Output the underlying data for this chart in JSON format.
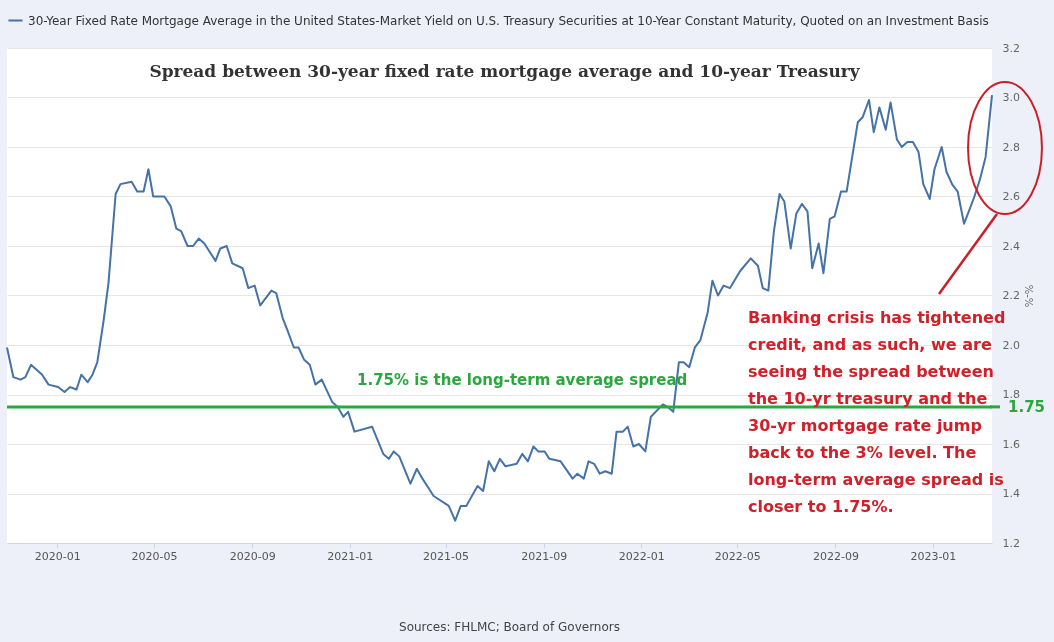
{
  "chart_data": {
    "type": "line",
    "title": "Spread between 30-year fixed rate mortgage average and 10-year Treasury",
    "ylabel": "%-%",
    "x": [
      "2019-10-30",
      "2019-11-07",
      "2019-11-16",
      "2019-11-22",
      "2019-11-29",
      "2019-12-13",
      "2019-12-21",
      "2020-01-02",
      "2020-01-10",
      "2020-01-17",
      "2020-01-25",
      "2020-01-31",
      "2020-02-08",
      "2020-02-14",
      "2020-02-20",
      "2020-02-28",
      "2020-03-05",
      "2020-03-14",
      "2020-03-20",
      "2020-04-03",
      "2020-04-10",
      "2020-04-18",
      "2020-04-24",
      "2020-04-30",
      "2020-05-14",
      "2020-05-22",
      "2020-05-29",
      "2020-06-04",
      "2020-06-12",
      "2020-06-19",
      "2020-06-26",
      "2020-07-03",
      "2020-07-17",
      "2020-07-23",
      "2020-07-31",
      "2020-08-07",
      "2020-08-20",
      "2020-08-27",
      "2020-09-04",
      "2020-09-11",
      "2020-09-25",
      "2020-10-01",
      "2020-10-09",
      "2020-10-15",
      "2020-10-23",
      "2020-10-29",
      "2020-11-05",
      "2020-11-12",
      "2020-11-19",
      "2020-11-27",
      "2020-12-10",
      "2020-12-17",
      "2020-12-24",
      "2020-12-30",
      "2021-01-07",
      "2021-01-29",
      "2021-02-12",
      "2021-02-19",
      "2021-02-25",
      "2021-03-04",
      "2021-03-18",
      "2021-03-26",
      "2021-04-02",
      "2021-04-08",
      "2021-04-16",
      "2021-05-05",
      "2021-05-13",
      "2021-05-20",
      "2021-05-27",
      "2021-06-10",
      "2021-06-17",
      "2021-06-24",
      "2021-07-01",
      "2021-07-08",
      "2021-07-15",
      "2021-07-29",
      "2021-08-05",
      "2021-08-12",
      "2021-08-19",
      "2021-08-25",
      "2021-09-02",
      "2021-09-08",
      "2021-09-22",
      "2021-10-07",
      "2021-10-13",
      "2021-10-21",
      "2021-10-27",
      "2021-11-03",
      "2021-11-10",
      "2021-11-17",
      "2021-11-25",
      "2021-12-01",
      "2021-12-09",
      "2021-12-15",
      "2021-12-22",
      "2021-12-29",
      "2022-01-06",
      "2022-01-13",
      "2022-01-28",
      "2022-02-03",
      "2022-02-10",
      "2022-02-17",
      "2022-02-23",
      "2022-03-02",
      "2022-03-09",
      "2022-03-16",
      "2022-03-25",
      "2022-03-31",
      "2022-04-07",
      "2022-04-14",
      "2022-04-22",
      "2022-05-05",
      "2022-05-18",
      "2022-05-27",
      "2022-06-02",
      "2022-06-09",
      "2022-06-16",
      "2022-06-23",
      "2022-06-29",
      "2022-07-07",
      "2022-07-14",
      "2022-07-21",
      "2022-07-28",
      "2022-08-03",
      "2022-08-11",
      "2022-08-17",
      "2022-08-25",
      "2022-08-31",
      "2022-09-08",
      "2022-09-15",
      "2022-09-21",
      "2022-09-29",
      "2022-10-05",
      "2022-10-13",
      "2022-10-19",
      "2022-10-26",
      "2022-11-03",
      "2022-11-09",
      "2022-11-17",
      "2022-11-23",
      "2022-11-30",
      "2022-12-07",
      "2022-12-14",
      "2022-12-20",
      "2022-12-28",
      "2023-01-03",
      "2023-01-12",
      "2023-01-18",
      "2023-01-25",
      "2023-02-01",
      "2023-02-09",
      "2023-02-15",
      "2023-02-22",
      "2023-03-01",
      "2023-03-08",
      "2023-03-16"
    ],
    "series": [
      {
        "name": "30-Year Fixed Rate Mortgage Average in the United States-Market Yield on U.S. Treasury Securities at 10-Year Constant Maturity, Quoted on an Investment Basis",
        "color": "#4572a7",
        "values": [
          1.99,
          1.87,
          1.86,
          1.87,
          1.92,
          1.88,
          1.84,
          1.83,
          1.81,
          1.83,
          1.82,
          1.88,
          1.85,
          1.88,
          1.93,
          2.1,
          2.25,
          2.61,
          2.65,
          2.66,
          2.62,
          2.62,
          2.71,
          2.6,
          2.6,
          2.56,
          2.47,
          2.46,
          2.4,
          2.4,
          2.43,
          2.41,
          2.34,
          2.39,
          2.4,
          2.33,
          2.31,
          2.23,
          2.24,
          2.16,
          2.22,
          2.21,
          2.11,
          2.06,
          1.99,
          1.99,
          1.94,
          1.92,
          1.84,
          1.86,
          1.77,
          1.75,
          1.71,
          1.73,
          1.65,
          1.67,
          1.56,
          1.54,
          1.57,
          1.55,
          1.44,
          1.5,
          1.46,
          1.43,
          1.39,
          1.35,
          1.29,
          1.35,
          1.35,
          1.43,
          1.41,
          1.53,
          1.49,
          1.54,
          1.51,
          1.52,
          1.56,
          1.53,
          1.59,
          1.57,
          1.57,
          1.54,
          1.53,
          1.46,
          1.48,
          1.46,
          1.53,
          1.52,
          1.48,
          1.49,
          1.48,
          1.65,
          1.65,
          1.67,
          1.59,
          1.6,
          1.57,
          1.71,
          1.76,
          1.75,
          1.73,
          1.93,
          1.93,
          1.91,
          1.99,
          2.02,
          2.13,
          2.26,
          2.2,
          2.24,
          2.23,
          2.3,
          2.35,
          2.32,
          2.23,
          2.22,
          2.46,
          2.61,
          2.58,
          2.39,
          2.53,
          2.57,
          2.54,
          2.31,
          2.41,
          2.29,
          2.51,
          2.52,
          2.62,
          2.62,
          2.74,
          2.9,
          2.92,
          2.99,
          2.86,
          2.96,
          2.87,
          2.98,
          2.83,
          2.8,
          2.82,
          2.82,
          2.78,
          2.65,
          2.59,
          2.71,
          2.8,
          2.7,
          2.65,
          2.62,
          2.49,
          2.54,
          2.6,
          2.67,
          2.76,
          3.01
        ]
      }
    ],
    "xlim": [
      "2019-10-30",
      "2023-03-16"
    ],
    "xticks": [
      "2020-01",
      "2020-05",
      "2020-09",
      "2021-01",
      "2021-05",
      "2021-09",
      "2022-01",
      "2022-05",
      "2022-09",
      "2023-01"
    ],
    "ylim": [
      1.2,
      3.2
    ],
    "yticks": [
      {
        "value": 1.2,
        "label": "1.2"
      },
      {
        "value": 1.4,
        "label": "1.4"
      },
      {
        "value": 1.6,
        "label": "1.6"
      },
      {
        "value": 1.8,
        "label": "1.8"
      },
      {
        "value": 2.0,
        "label": "2.0"
      },
      {
        "value": 2.2,
        "label": "2.2"
      },
      {
        "value": 2.4,
        "label": "2.4"
      },
      {
        "value": 2.6,
        "label": "2.6"
      },
      {
        "value": 2.8,
        "label": "2.8"
      },
      {
        "value": 3.0,
        "label": "3.0"
      },
      {
        "value": 3.2,
        "label": "3.2"
      }
    ],
    "ref_lines": [
      {
        "axis": "y",
        "value": 1.75,
        "label": "1.75% is the long-term average spread",
        "color": "#2ca73f"
      }
    ],
    "annotations": [
      "1.75",
      "Banking crisis has tightened credit, and as such, we are seeing the spread between the 10-yr treasury and the 30-yr mortgage rate jump back to the 3% level. The long-term average spread is closer to 1.75%.",
      "Sources: FHLMC; Board of Governors"
    ],
    "grid": "y",
    "legend": "top left",
    "marker": "none",
    "line_style": "solid"
  }
}
